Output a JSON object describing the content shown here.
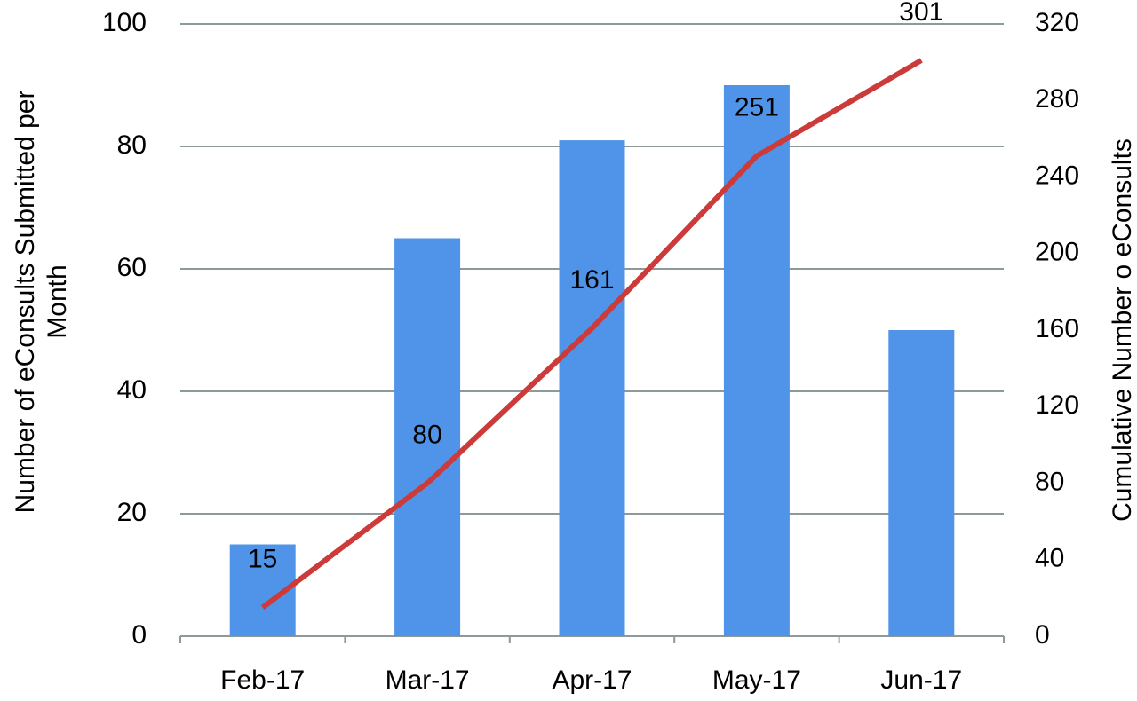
{
  "chart_data": {
    "type": "bar-line",
    "ylabel": [
      "Number of eConsults Submitted  per",
      "Month"
    ],
    "y2label": "Cumulative Number o eConsults",
    "categories": [
      "Feb-17",
      "Mar-17",
      "Apr-17",
      "May-17",
      "Jun-17"
    ],
    "series": [
      {
        "type": "bar",
        "color": "#4f94e8",
        "values": [
          15,
          65,
          81,
          90,
          50
        ]
      },
      {
        "type": "line",
        "color": "#cc3a3a",
        "axis": "y2",
        "values": [
          15,
          80,
          161,
          251,
          301
        ]
      }
    ],
    "ylim": [
      0,
      100
    ],
    "yticks": [
      0,
      20,
      40,
      60,
      80,
      100
    ],
    "y2lim": [
      0,
      320
    ],
    "y2ticks": [
      0,
      40,
      80,
      120,
      160,
      200,
      240,
      280,
      320
    ],
    "grid": true
  }
}
